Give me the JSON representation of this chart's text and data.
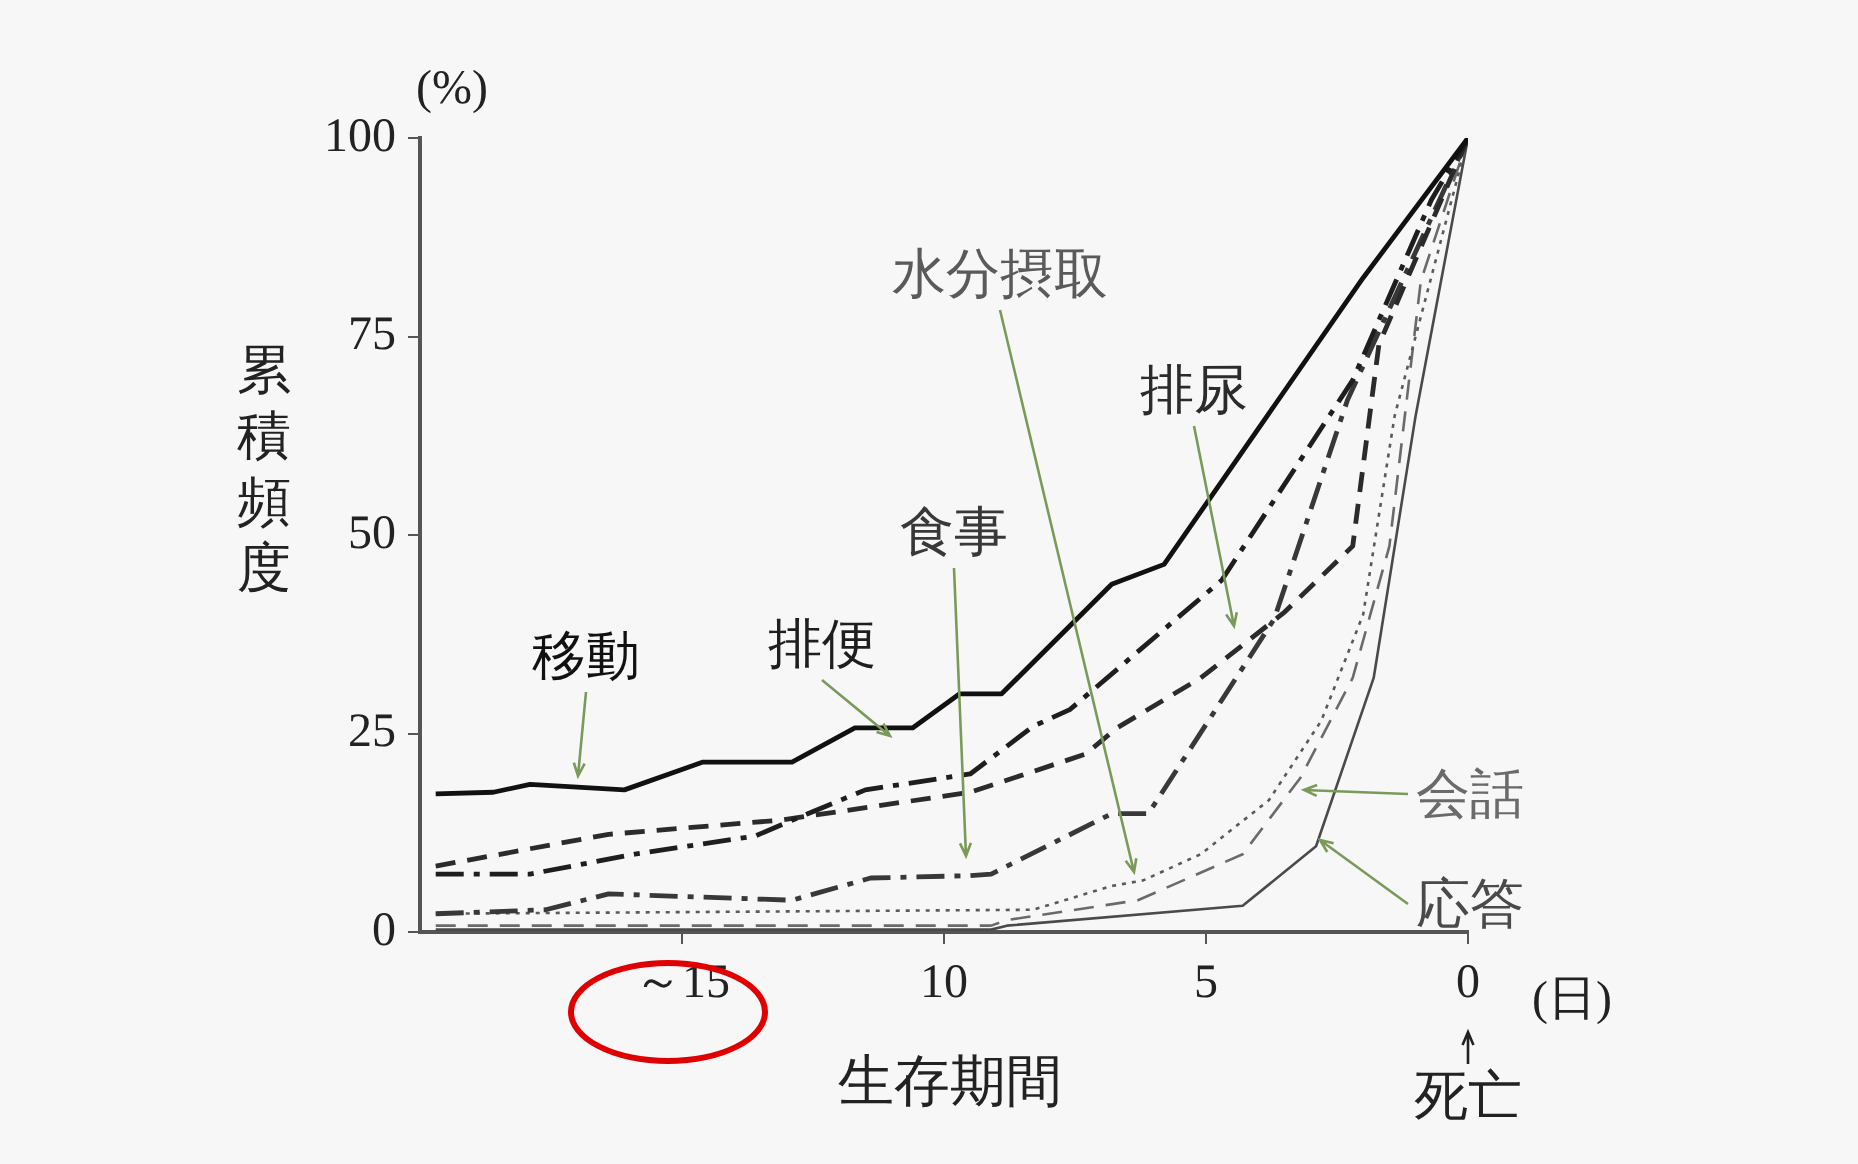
{
  "chart_data": {
    "type": "line",
    "xlabel": "生存期間",
    "ylabel": "累積頻度",
    "annotations": [
      "(%)",
      "(日)",
      "死亡"
    ],
    "xlim": [
      20,
      0
    ],
    "xticks": [
      {
        "value": 15,
        "label": "～15"
      },
      10,
      5,
      0
    ],
    "ylim": [
      0,
      100
    ],
    "yticks": [
      0,
      25,
      50,
      75,
      100
    ],
    "grid": false,
    "legend": false,
    "marker": "none",
    "series": [
      {
        "name": "移動",
        "color": "#111111",
        "line_style": "solid",
        "x": [
          19.7,
          18.6,
          17.9,
          16.1,
          14.6,
          12.9,
          11.7,
          10.6,
          9.7,
          8.9,
          6.8,
          5.8,
          2.0,
          0
        ],
        "values": [
          17.4,
          17.6,
          18.6,
          17.9,
          21.4,
          21.4,
          25.7,
          25.7,
          30,
          30,
          43.8,
          46.3,
          82.4,
          100
        ]
      },
      {
        "name": "排便",
        "color": "#1e1e1e",
        "line_style": "dashdot",
        "x": [
          19.7,
          17.9,
          15.9,
          13.6,
          12.6,
          11.5,
          9.5,
          8.3,
          7.6,
          4.7,
          2.2,
          0.7,
          0
        ],
        "values": [
          7.3,
          7.3,
          9.8,
          12.1,
          14.9,
          17.9,
          19.9,
          25.9,
          28,
          44.3,
          69.5,
          92.2,
          100
        ]
      },
      {
        "name": "排尿",
        "color": "#2b2b2b",
        "line_style": "dashed",
        "x": [
          19.7,
          16.4,
          13.1,
          9.5,
          7.3,
          6.7,
          5.1,
          3.5,
          2.2,
          1.7,
          0
        ],
        "values": [
          8.3,
          12.3,
          14.1,
          17.6,
          22.4,
          25.7,
          32,
          40.3,
          48.6,
          74,
          100
        ]
      },
      {
        "name": "食事",
        "color": "#383838",
        "line_style": "dashdot",
        "x": [
          19.7,
          17.6,
          16.4,
          12.9,
          11.4,
          9.5,
          9.1,
          6.8,
          6.1,
          3.7,
          2.3,
          0
        ],
        "values": [
          2.3,
          2.8,
          4.8,
          4,
          6.8,
          7.1,
          7.3,
          14.9,
          14.9,
          39.4,
          67,
          100
        ]
      },
      {
        "name": "水分摂取",
        "color": "#5a5a5a",
        "line_style": "dotted",
        "x": [
          19.7,
          8.3,
          6.8,
          6.2,
          5.1,
          3.8,
          2.8,
          2.0,
          1.4,
          0
        ],
        "values": [
          2.3,
          2.8,
          5.8,
          6.5,
          9.8,
          16.6,
          26.6,
          40,
          65,
          100
        ]
      },
      {
        "name": "会話",
        "color": "#6a6a6a",
        "line_style": "dashed",
        "x": [
          19.7,
          9.1,
          8.8,
          6.3,
          4.3,
          3.2,
          2.2,
          1.5,
          0.9,
          0
        ],
        "values": [
          0.8,
          0.8,
          1.5,
          4,
          9.8,
          19.4,
          32,
          48.6,
          82,
          100
        ]
      },
      {
        "name": "応答",
        "color": "#4a4a4a",
        "line_style": "solid",
        "x": [
          19.7,
          9.1,
          8.8,
          4.3,
          2.9,
          1.8,
          1.0,
          0
        ],
        "values": [
          0.3,
          0.3,
          0.8,
          3.3,
          10.8,
          32,
          65,
          100
        ]
      }
    ]
  }
}
